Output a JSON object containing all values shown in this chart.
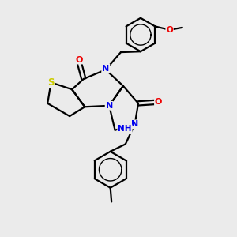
{
  "bg_color": "#ebebeb",
  "atom_colors": {
    "S": "#cccc00",
    "N": "#0000ee",
    "O": "#ee0000",
    "C": "#000000",
    "H": "#008888"
  },
  "bond_color": "#000000",
  "bond_width": 1.6
}
